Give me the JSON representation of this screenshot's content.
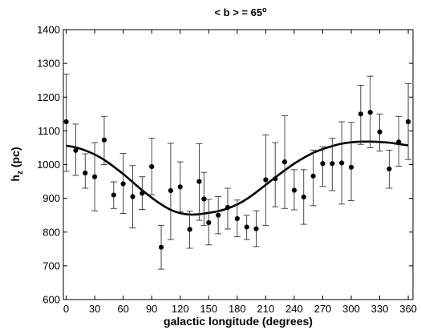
{
  "chart_data": {
    "type": "scatter",
    "title_main": "< b > = 65",
    "title_sup": "o",
    "xlabel": "galactic longitude (degrees)",
    "ylabel_main": "h",
    "ylabel_sub": "z",
    "ylabel_suffix": " (pc)",
    "xlim": [
      -3,
      365
    ],
    "ylim": [
      600,
      1400
    ],
    "xticks": [
      0,
      30,
      60,
      90,
      120,
      150,
      180,
      210,
      240,
      270,
      300,
      330,
      360
    ],
    "xtick_labels": [
      "0",
      "30",
      "60",
      "90",
      "120",
      "150",
      "180",
      "210",
      "240",
      "270",
      "300",
      "330",
      "360"
    ],
    "yticks": [
      600,
      700,
      800,
      900,
      1000,
      1100,
      1200,
      1300,
      1400
    ],
    "ytick_labels": [
      "600",
      "700",
      "800",
      "900",
      "1000",
      "1100",
      "1200",
      "1300",
      "1400"
    ],
    "grid": false,
    "legend": "none",
    "series": [
      {
        "kind": "points-with-error-bars",
        "points": [
          {
            "x": 0,
            "y": 1127,
            "lo": 980,
            "hi": 1268
          },
          {
            "x": 10,
            "y": 1042,
            "lo": 968,
            "hi": 1120
          },
          {
            "x": 20,
            "y": 975,
            "lo": 930,
            "hi": 1032
          },
          {
            "x": 30,
            "y": 964,
            "lo": 863,
            "hi": 1065
          },
          {
            "x": 40,
            "y": 1073,
            "lo": 1000,
            "hi": 1143
          },
          {
            "x": 50,
            "y": 910,
            "lo": 870,
            "hi": 949
          },
          {
            "x": 60,
            "y": 943,
            "lo": 855,
            "hi": 1033
          },
          {
            "x": 70,
            "y": 905,
            "lo": 812,
            "hi": 997
          },
          {
            "x": 80,
            "y": 915,
            "lo": 867,
            "hi": 964
          },
          {
            "x": 90,
            "y": 994,
            "lo": 911,
            "hi": 1078
          },
          {
            "x": 100,
            "y": 755,
            "lo": 690,
            "hi": 820
          },
          {
            "x": 110,
            "y": 923,
            "lo": 778,
            "hi": 1063
          },
          {
            "x": 120,
            "y": 934,
            "lo": 860,
            "hi": 1008
          },
          {
            "x": 130,
            "y": 808,
            "lo": 752,
            "hi": 862
          },
          {
            "x": 140,
            "y": 950,
            "lo": 835,
            "hi": 1062
          },
          {
            "x": 145,
            "y": 898,
            "lo": 820,
            "hi": 977
          },
          {
            "x": 150,
            "y": 828,
            "lo": 762,
            "hi": 897
          },
          {
            "x": 160,
            "y": 850,
            "lo": 795,
            "hi": 905
          },
          {
            "x": 170,
            "y": 873,
            "lo": 809,
            "hi": 930
          },
          {
            "x": 180,
            "y": 840,
            "lo": 786,
            "hi": 895
          },
          {
            "x": 190,
            "y": 815,
            "lo": 778,
            "hi": 850
          },
          {
            "x": 200,
            "y": 810,
            "lo": 757,
            "hi": 863
          },
          {
            "x": 210,
            "y": 955,
            "lo": 820,
            "hi": 1088
          },
          {
            "x": 220,
            "y": 958,
            "lo": 875,
            "hi": 1065
          },
          {
            "x": 230,
            "y": 1008,
            "lo": 870,
            "hi": 1145
          },
          {
            "x": 240,
            "y": 924,
            "lo": 866,
            "hi": 985
          },
          {
            "x": 250,
            "y": 904,
            "lo": 823,
            "hi": 985
          },
          {
            "x": 260,
            "y": 966,
            "lo": 878,
            "hi": 1043
          },
          {
            "x": 270,
            "y": 1003,
            "lo": 935,
            "hi": 1053
          },
          {
            "x": 280,
            "y": 1003,
            "lo": 923,
            "hi": 1078
          },
          {
            "x": 290,
            "y": 1005,
            "lo": 883,
            "hi": 1127
          },
          {
            "x": 300,
            "y": 992,
            "lo": 893,
            "hi": 1125
          },
          {
            "x": 310,
            "y": 1150,
            "lo": 1060,
            "hi": 1235
          },
          {
            "x": 320,
            "y": 1155,
            "lo": 1050,
            "hi": 1262
          },
          {
            "x": 330,
            "y": 1097,
            "lo": 1040,
            "hi": 1150
          },
          {
            "x": 340,
            "y": 987,
            "lo": 930,
            "hi": 1043
          },
          {
            "x": 350,
            "y": 1067,
            "lo": 995,
            "hi": 1143
          },
          {
            "x": 360,
            "y": 1127,
            "lo": 1015,
            "hi": 1240
          }
        ]
      },
      {
        "kind": "fit-curve",
        "x": [
          0,
          10,
          20,
          30,
          40,
          50,
          60,
          70,
          80,
          90,
          100,
          110,
          120,
          130,
          140,
          150,
          160,
          170,
          180,
          190,
          200,
          210,
          220,
          230,
          240,
          250,
          260,
          270,
          280,
          290,
          300,
          310,
          320,
          330,
          340,
          350,
          360
        ],
        "y": [
          1056,
          1051,
          1042,
          1030,
          1014,
          994,
          972,
          948,
          924,
          902,
          882,
          866,
          856,
          852,
          853,
          857,
          862,
          870,
          882,
          898,
          918,
          940,
          962,
          983,
          1003,
          1020,
          1035,
          1046,
          1055,
          1062,
          1066,
          1068,
          1068,
          1067,
          1065,
          1061,
          1057
        ]
      }
    ]
  }
}
